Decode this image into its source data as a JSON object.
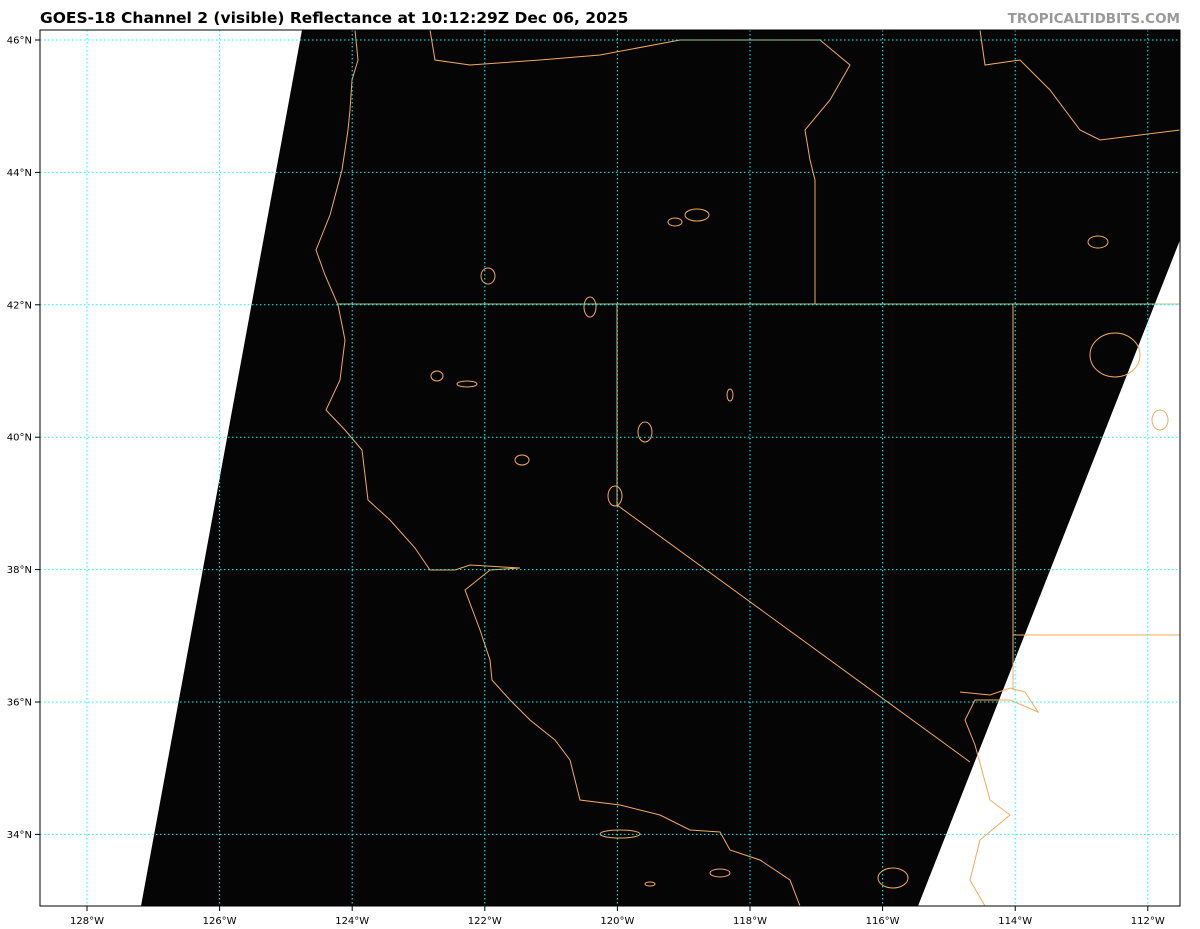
{
  "title": "GOES-18 Channel 2 (visible) Reflectance at 10:12:29Z Dec 06, 2025",
  "credit": "TROPICALTIDBITS.COM",
  "map": {
    "projection": "geostationary satellite swath",
    "lon_ticks": [
      "128°W",
      "126°W",
      "124°W",
      "122°W",
      "120°W",
      "118°W",
      "116°W",
      "114°W",
      "112°W"
    ],
    "lat_ticks": [
      "46°N",
      "44°N",
      "42°N",
      "40°N",
      "38°N",
      "36°N",
      "34°N"
    ],
    "colors": {
      "gridline": "#00ffff",
      "coastline": "#f4a95a",
      "swath": "#050505",
      "background": "#ffffff"
    }
  }
}
